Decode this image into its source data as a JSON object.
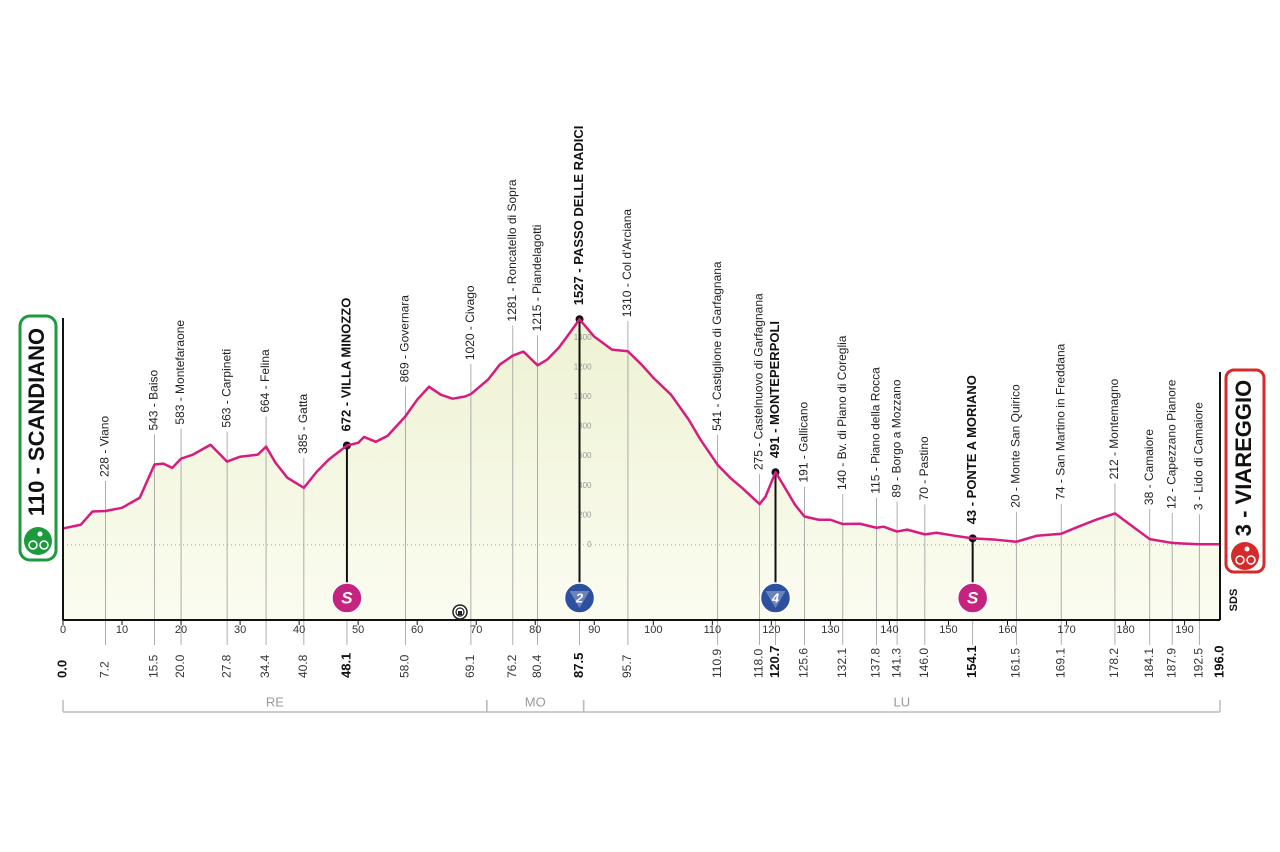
{
  "chart_data": {
    "type": "profile",
    "color": "#d81b7f",
    "x": [
      0,
      3,
      5,
      7.2,
      10,
      13,
      15.5,
      17,
      18.5,
      20,
      22,
      25,
      27.8,
      30,
      33,
      34.4,
      36,
      38,
      40.8,
      43,
      45,
      48.1,
      50,
      51,
      53,
      55,
      58,
      60,
      62,
      64,
      66,
      68,
      69.1,
      72,
      74,
      76.2,
      78,
      80.4,
      82,
      84,
      86,
      87.5,
      90,
      93,
      95.7,
      98,
      100,
      103,
      106,
      108,
      110.9,
      113,
      115,
      118,
      119,
      120.7,
      122,
      124,
      125.6,
      128,
      130,
      132.1,
      135,
      137.8,
      139,
      141.3,
      143,
      146,
      148,
      151,
      154.1,
      158,
      161.5,
      165,
      169.1,
      172,
      175,
      178.2,
      181,
      184.1,
      187.9,
      190,
      192.5,
      196
    ],
    "values": [
      110,
      135,
      225,
      228,
      250,
      318,
      543,
      549,
      520,
      583,
      610,
      677,
      563,
      596,
      610,
      664,
      555,
      454,
      385,
      495,
      576,
      672,
      690,
      730,
      697,
      738,
      869,
      982,
      1070,
      1016,
      989,
      1003,
      1020,
      1118,
      1220,
      1281,
      1308,
      1215,
      1253,
      1335,
      1443,
      1527,
      1409,
      1321,
      1310,
      1220,
      1131,
      1016,
      847,
      711,
      541,
      454,
      386,
      275,
      325,
      491,
      406,
      271,
      191,
      169,
      169,
      140,
      142,
      115,
      122,
      89,
      102,
      70,
      81,
      61,
      43,
      34,
      20,
      61,
      74,
      122,
      169,
      212,
      129,
      38,
      12,
      7,
      3,
      3
    ],
    "xlim": [
      0,
      196
    ],
    "ylim": [
      -510,
      1400
    ],
    "xticks": [
      0,
      10,
      20,
      30,
      40,
      50,
      60,
      70,
      80,
      90,
      100,
      110,
      120,
      130,
      140,
      150,
      160,
      170,
      180,
      190
    ],
    "yticks": [
      0,
      200,
      400,
      600,
      800,
      1000,
      1200,
      1400
    ],
    "start": {
      "km": {
        "value": 0,
        "label": "0.0"
      },
      "label": "110 - SCANDIANO",
      "color": "#1e9a3e"
    },
    "finish": {
      "km": {
        "value": 196,
        "label": "196.0"
      },
      "label": "3 - VIAREGGIO",
      "color": "#d42a2a"
    },
    "marker_colors": {
      "sprint": "#c4237f",
      "kom": "#2c4f9e"
    },
    "pois": [
      {
        "km": 7.2,
        "label": "228 - Viano"
      },
      {
        "km": 15.5,
        "label": "543 - Baiso"
      },
      {
        "km": {
          "value": 20,
          "label": "20.0"
        },
        "label": "583 - Montefaraone"
      },
      {
        "km": 27.8,
        "label": "563 - Carpineti"
      },
      {
        "km": 34.4,
        "label": "664 - Felina"
      },
      {
        "km": 40.8,
        "label": "385 - Gatta"
      },
      {
        "km": 48.1,
        "label": "672 - VILLA MINOZZO",
        "bold": true,
        "marker": "S",
        "marker_kind": "sprint"
      },
      {
        "km": {
          "value": 58,
          "label": "58.0"
        },
        "label": "869 - Governara"
      },
      {
        "km": 69.1,
        "label": "1020 - Civago"
      },
      {
        "km": 76.2,
        "label": "1281 - Roncatello di Sopra"
      },
      {
        "km": 80.4,
        "label": "1215 - Piandelagotti"
      },
      {
        "km": 87.5,
        "label": "1527 - PASSO DELLE RADICI",
        "bold": true,
        "marker": "2",
        "marker_kind": "kom"
      },
      {
        "km": 95.7,
        "label": "1310 - Col d'Arciana"
      },
      {
        "km": 110.9,
        "label": "541 - Castiglione di Garfagnana"
      },
      {
        "km": {
          "value": 118,
          "label": "118.0"
        },
        "label": "275 - Castelnuovo di Garfagnana"
      },
      {
        "km": 120.7,
        "label": "491 - MONTEPERPOLI",
        "bold": true,
        "marker": "4",
        "marker_kind": "kom"
      },
      {
        "km": 125.6,
        "label": "191 - Gallicano"
      },
      {
        "km": 132.1,
        "label": "140 - Bv. di Piano di Coreglia"
      },
      {
        "km": 137.8,
        "label": "115 - Piano della Rocca"
      },
      {
        "km": 141.3,
        "label": "89 - Borgo a Mozzano"
      },
      {
        "km": {
          "value": 146,
          "label": "146.0"
        },
        "label": "70 - Pastino"
      },
      {
        "km": 154.1,
        "label": "43 - PONTE A MORIANO",
        "bold": true,
        "marker": "S",
        "marker_kind": "sprint"
      },
      {
        "km": 161.5,
        "label": "20 - Monte San Quirico"
      },
      {
        "km": 169.1,
        "label": "74 - San Martino in Freddana"
      },
      {
        "km": 178.2,
        "label": "212 - Montemagno"
      },
      {
        "km": 184.1,
        "label": "38 - Camaiore"
      },
      {
        "km": 187.9,
        "label": "12 - Capezzano Pianore"
      },
      {
        "km": 192.5,
        "label": "3 - Lido di Camaiore"
      }
    ],
    "regions": [
      {
        "label": "RE",
        "from": 0,
        "to": 71.8
      },
      {
        "label": "MO",
        "from": 71.8,
        "to": 88.2
      },
      {
        "label": "LU",
        "from": 88.2,
        "to": 196
      }
    ],
    "credit": "SDS"
  }
}
